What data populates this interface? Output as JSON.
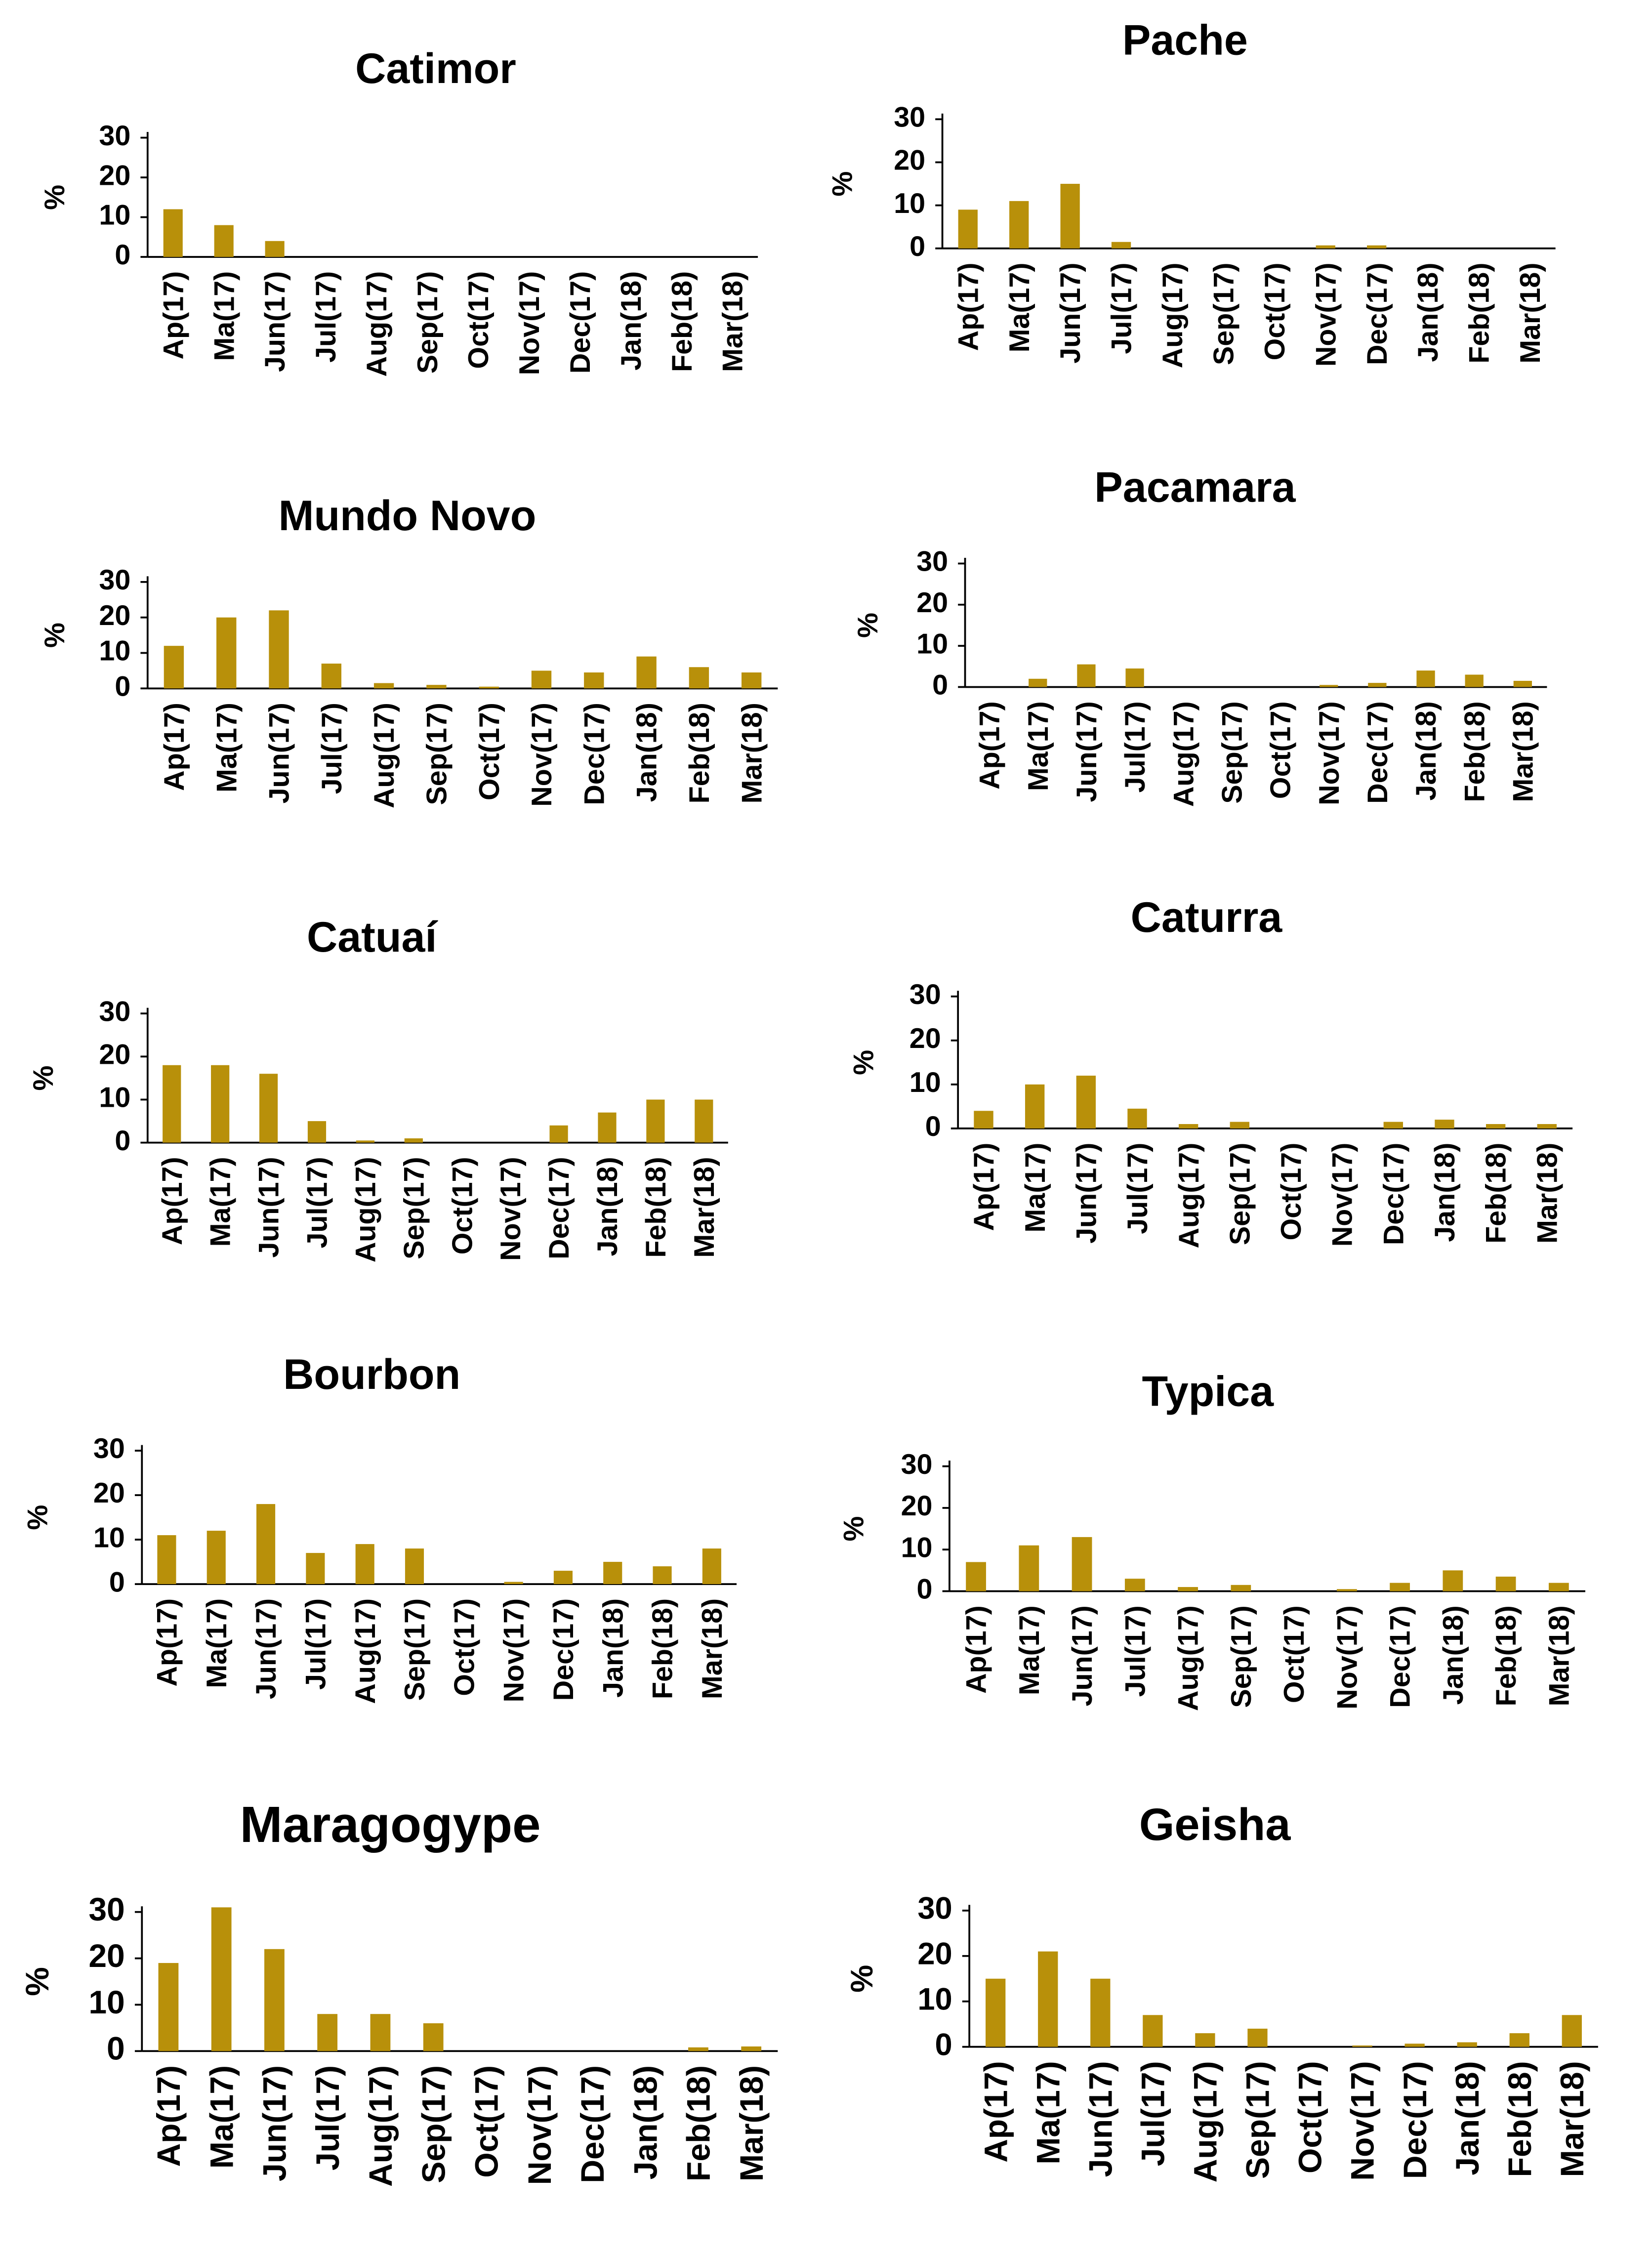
{
  "colors": {
    "bar": "#B8900A",
    "axis": "#000000",
    "background": "#FFFFFF"
  },
  "chart_data": [
    {
      "type": "bar",
      "title": "Catimor",
      "ylabel": "%",
      "yticks": [
        0,
        10,
        20,
        30
      ],
      "ylim": [
        0,
        30
      ],
      "categories": [
        "Ap(17)",
        "Ma(17)",
        "Jun(17)",
        "Jul(17)",
        "Aug(17)",
        "Sep(17)",
        "Oct(17)",
        "Nov(17)",
        "Dec(17)",
        "Jan(18)",
        "Feb(18)",
        "Mar(18)"
      ],
      "values": [
        12,
        8,
        4,
        0,
        0,
        0,
        0,
        0,
        0,
        0,
        0,
        0
      ]
    },
    {
      "type": "bar",
      "title": "Pache",
      "ylabel": "%",
      "yticks": [
        0,
        10,
        20,
        30
      ],
      "ylim": [
        0,
        30
      ],
      "categories": [
        "Ap(17)",
        "Ma(17)",
        "Jun(17)",
        "Jul(17)",
        "Aug(17)",
        "Sep(17)",
        "Oct(17)",
        "Nov(17)",
        "Dec(17)",
        "Jan(18)",
        "Feb(18)",
        "Mar(18)"
      ],
      "values": [
        9,
        11,
        15,
        1.5,
        0,
        0,
        0,
        0.7,
        0.7,
        0,
        0,
        0
      ]
    },
    {
      "type": "bar",
      "title": "Mundo Novo",
      "ylabel": "%",
      "yticks": [
        0,
        10,
        20,
        30
      ],
      "ylim": [
        0,
        30
      ],
      "categories": [
        "Ap(17)",
        "Ma(17)",
        "Jun(17)",
        "Jul(17)",
        "Aug(17)",
        "Sep(17)",
        "Oct(17)",
        "Nov(17)",
        "Dec(17)",
        "Jan(18)",
        "Feb(18)",
        "Mar(18)"
      ],
      "values": [
        12,
        20,
        22,
        7,
        1.5,
        1,
        0.5,
        5,
        4.5,
        9,
        6,
        4.5
      ]
    },
    {
      "type": "bar",
      "title": "Pacamara",
      "ylabel": "%",
      "yticks": [
        0,
        10,
        20,
        30
      ],
      "ylim": [
        0,
        30
      ],
      "categories": [
        "Ap(17)",
        "Ma(17)",
        "Jun(17)",
        "Jul(17)",
        "Aug(17)",
        "Sep(17)",
        "Oct(17)",
        "Nov(17)",
        "Dec(17)",
        "Jan(18)",
        "Feb(18)",
        "Mar(18)"
      ],
      "values": [
        0,
        2,
        5.5,
        4.5,
        0,
        0,
        0,
        0.5,
        1,
        4,
        3,
        1.5
      ]
    },
    {
      "type": "bar",
      "title": "Catuaí",
      "ylabel": "%",
      "yticks": [
        0,
        10,
        20,
        30
      ],
      "ylim": [
        0,
        30
      ],
      "categories": [
        "Ap(17)",
        "Ma(17)",
        "Jun(17)",
        "Jul(17)",
        "Aug(17)",
        "Sep(17)",
        "Oct(17)",
        "Nov(17)",
        "Dec(17)",
        "Jan(18)",
        "Feb(18)",
        "Mar(18)"
      ],
      "values": [
        18,
        18,
        16,
        5,
        0.5,
        1,
        0,
        0,
        4,
        7,
        10,
        10
      ]
    },
    {
      "type": "bar",
      "title": "Caturra",
      "ylabel": "%",
      "yticks": [
        0,
        10,
        20,
        30
      ],
      "ylim": [
        0,
        30
      ],
      "categories": [
        "Ap(17)",
        "Ma(17)",
        "Jun(17)",
        "Jul(17)",
        "Aug(17)",
        "Sep(17)",
        "Oct(17)",
        "Nov(17)",
        "Dec(17)",
        "Jan(18)",
        "Feb(18)",
        "Mar(18)"
      ],
      "values": [
        4,
        10,
        12,
        4.5,
        1,
        1.5,
        0,
        0,
        1.5,
        2,
        1,
        1
      ]
    },
    {
      "type": "bar",
      "title": "Bourbon",
      "ylabel": "%",
      "yticks": [
        0,
        10,
        20,
        30
      ],
      "ylim": [
        0,
        30
      ],
      "categories": [
        "Ap(17)",
        "Ma(17)",
        "Jun(17)",
        "Jul(17)",
        "Aug(17)",
        "Sep(17)",
        "Oct(17)",
        "Nov(17)",
        "Dec(17)",
        "Jan(18)",
        "Feb(18)",
        "Mar(18)"
      ],
      "values": [
        11,
        12,
        18,
        7,
        9,
        8,
        0,
        0.5,
        3,
        5,
        4,
        8
      ]
    },
    {
      "type": "bar",
      "title": "Typica",
      "ylabel": "%",
      "yticks": [
        0,
        10,
        20,
        30
      ],
      "ylim": [
        0,
        30
      ],
      "categories": [
        "Ap(17)",
        "Ma(17)",
        "Jun(17)",
        "Jul(17)",
        "Aug(17)",
        "Sep(17)",
        "Oct(17)",
        "Nov(17)",
        "Dec(17)",
        "Jan(18)",
        "Feb(18)",
        "Mar(18)"
      ],
      "values": [
        7,
        11,
        13,
        3,
        1,
        1.5,
        0,
        0.5,
        2,
        5,
        3.5,
        2
      ]
    },
    {
      "type": "bar",
      "title": "Maragogype",
      "ylabel": "%",
      "yticks": [
        0,
        10,
        20,
        30
      ],
      "ylim": [
        0,
        30
      ],
      "categories": [
        "Ap(17)",
        "Ma(17)",
        "Jun(17)",
        "Jul(17)",
        "Aug(17)",
        "Sep(17)",
        "Oct(17)",
        "Nov(17)",
        "Dec(17)",
        "Jan(18)",
        "Feb(18)",
        "Mar(18)"
      ],
      "values": [
        19,
        31,
        22,
        8,
        8,
        6,
        0,
        0,
        0,
        0,
        0.8,
        1
      ]
    },
    {
      "type": "bar",
      "title": "Geisha",
      "ylabel": "%",
      "yticks": [
        0,
        10,
        20,
        30
      ],
      "ylim": [
        0,
        30
      ],
      "categories": [
        "Ap(17)",
        "Ma(17)",
        "Jun(17)",
        "Jul(17)",
        "Aug(17)",
        "Sep(17)",
        "Oct(17)",
        "Nov(17)",
        "Dec(17)",
        "Jan(18)",
        "Feb(18)",
        "Mar(18)"
      ],
      "values": [
        15,
        21,
        15,
        7,
        3,
        4,
        0,
        0.3,
        0.7,
        1,
        3,
        7
      ]
    }
  ]
}
